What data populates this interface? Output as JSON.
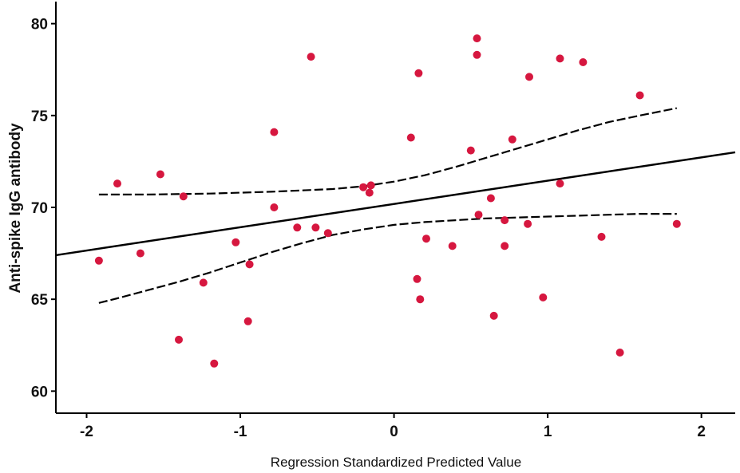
{
  "chart_data": {
    "type": "scatter",
    "title": "",
    "xlabel": "Regression Standardized Predicted Value",
    "ylabel": "Anti-spike IgG antibody",
    "xlim": [
      -2.2,
      2.22
    ],
    "ylim": [
      58.8,
      81.2
    ],
    "xticks": [
      -2,
      -1,
      0,
      1,
      2
    ],
    "xtick_labels": [
      "-2",
      "-1",
      "0",
      "1",
      "2"
    ],
    "yticks": [
      60,
      65,
      70,
      75,
      80
    ],
    "ytick_labels": [
      "60",
      "65",
      "70",
      "75",
      "80"
    ],
    "point_color": "#d6173f",
    "line_color": "#000000",
    "series": [
      {
        "name": "observations",
        "points": [
          [
            -1.92,
            67.1
          ],
          [
            -1.8,
            71.3
          ],
          [
            -1.65,
            67.5
          ],
          [
            -1.52,
            71.8
          ],
          [
            -1.4,
            62.8
          ],
          [
            -1.37,
            70.6
          ],
          [
            -1.24,
            65.9
          ],
          [
            -1.17,
            61.5
          ],
          [
            -1.03,
            68.1
          ],
          [
            -0.95,
            63.8
          ],
          [
            -0.94,
            66.9
          ],
          [
            -0.78,
            74.1
          ],
          [
            -0.78,
            70.0
          ],
          [
            -0.63,
            68.9
          ],
          [
            -0.54,
            78.2
          ],
          [
            -0.51,
            68.9
          ],
          [
            -0.43,
            68.6
          ],
          [
            -0.2,
            71.1
          ],
          [
            -0.16,
            70.8
          ],
          [
            -0.15,
            71.2
          ],
          [
            0.11,
            73.8
          ],
          [
            0.15,
            66.1
          ],
          [
            0.16,
            77.3
          ],
          [
            0.17,
            65.0
          ],
          [
            0.21,
            68.3
          ],
          [
            0.38,
            67.9
          ],
          [
            0.5,
            73.1
          ],
          [
            0.54,
            79.2
          ],
          [
            0.54,
            78.3
          ],
          [
            0.55,
            69.6
          ],
          [
            0.63,
            70.5
          ],
          [
            0.65,
            64.1
          ],
          [
            0.72,
            69.3
          ],
          [
            0.72,
            67.9
          ],
          [
            0.77,
            73.7
          ],
          [
            0.87,
            69.1
          ],
          [
            0.88,
            77.1
          ],
          [
            0.97,
            65.1
          ],
          [
            1.08,
            78.1
          ],
          [
            1.08,
            71.3
          ],
          [
            1.23,
            77.9
          ],
          [
            1.35,
            68.4
          ],
          [
            1.47,
            62.1
          ],
          [
            1.6,
            76.1
          ],
          [
            1.84,
            69.1
          ]
        ]
      },
      {
        "name": "fit line",
        "line": [
          [
            -2.2,
            67.4
          ],
          [
            2.22,
            73.0
          ]
        ]
      },
      {
        "name": "upper confidence band",
        "curve": [
          [
            -1.92,
            70.7
          ],
          [
            -1.6,
            70.7
          ],
          [
            -1.2,
            70.75
          ],
          [
            -0.8,
            70.85
          ],
          [
            -0.4,
            71.0
          ],
          [
            -0.2,
            71.15
          ],
          [
            0.0,
            71.4
          ],
          [
            0.2,
            71.75
          ],
          [
            0.4,
            72.2
          ],
          [
            0.6,
            72.7
          ],
          [
            0.8,
            73.2
          ],
          [
            1.0,
            73.7
          ],
          [
            1.2,
            74.2
          ],
          [
            1.4,
            74.65
          ],
          [
            1.6,
            75.0
          ],
          [
            1.84,
            75.4
          ]
        ]
      },
      {
        "name": "lower confidence band",
        "curve": [
          [
            -1.92,
            64.8
          ],
          [
            -1.8,
            65.05
          ],
          [
            -1.6,
            65.5
          ],
          [
            -1.4,
            65.95
          ],
          [
            -1.2,
            66.45
          ],
          [
            -1.0,
            67.0
          ],
          [
            -0.8,
            67.55
          ],
          [
            -0.6,
            68.05
          ],
          [
            -0.4,
            68.5
          ],
          [
            -0.2,
            68.8
          ],
          [
            0.0,
            69.05
          ],
          [
            0.2,
            69.2
          ],
          [
            0.4,
            69.3
          ],
          [
            0.6,
            69.4
          ],
          [
            0.8,
            69.45
          ],
          [
            1.0,
            69.5
          ],
          [
            1.2,
            69.55
          ],
          [
            1.4,
            69.6
          ],
          [
            1.6,
            69.65
          ],
          [
            1.84,
            69.65
          ]
        ]
      }
    ],
    "grid": false,
    "legend": "none"
  }
}
